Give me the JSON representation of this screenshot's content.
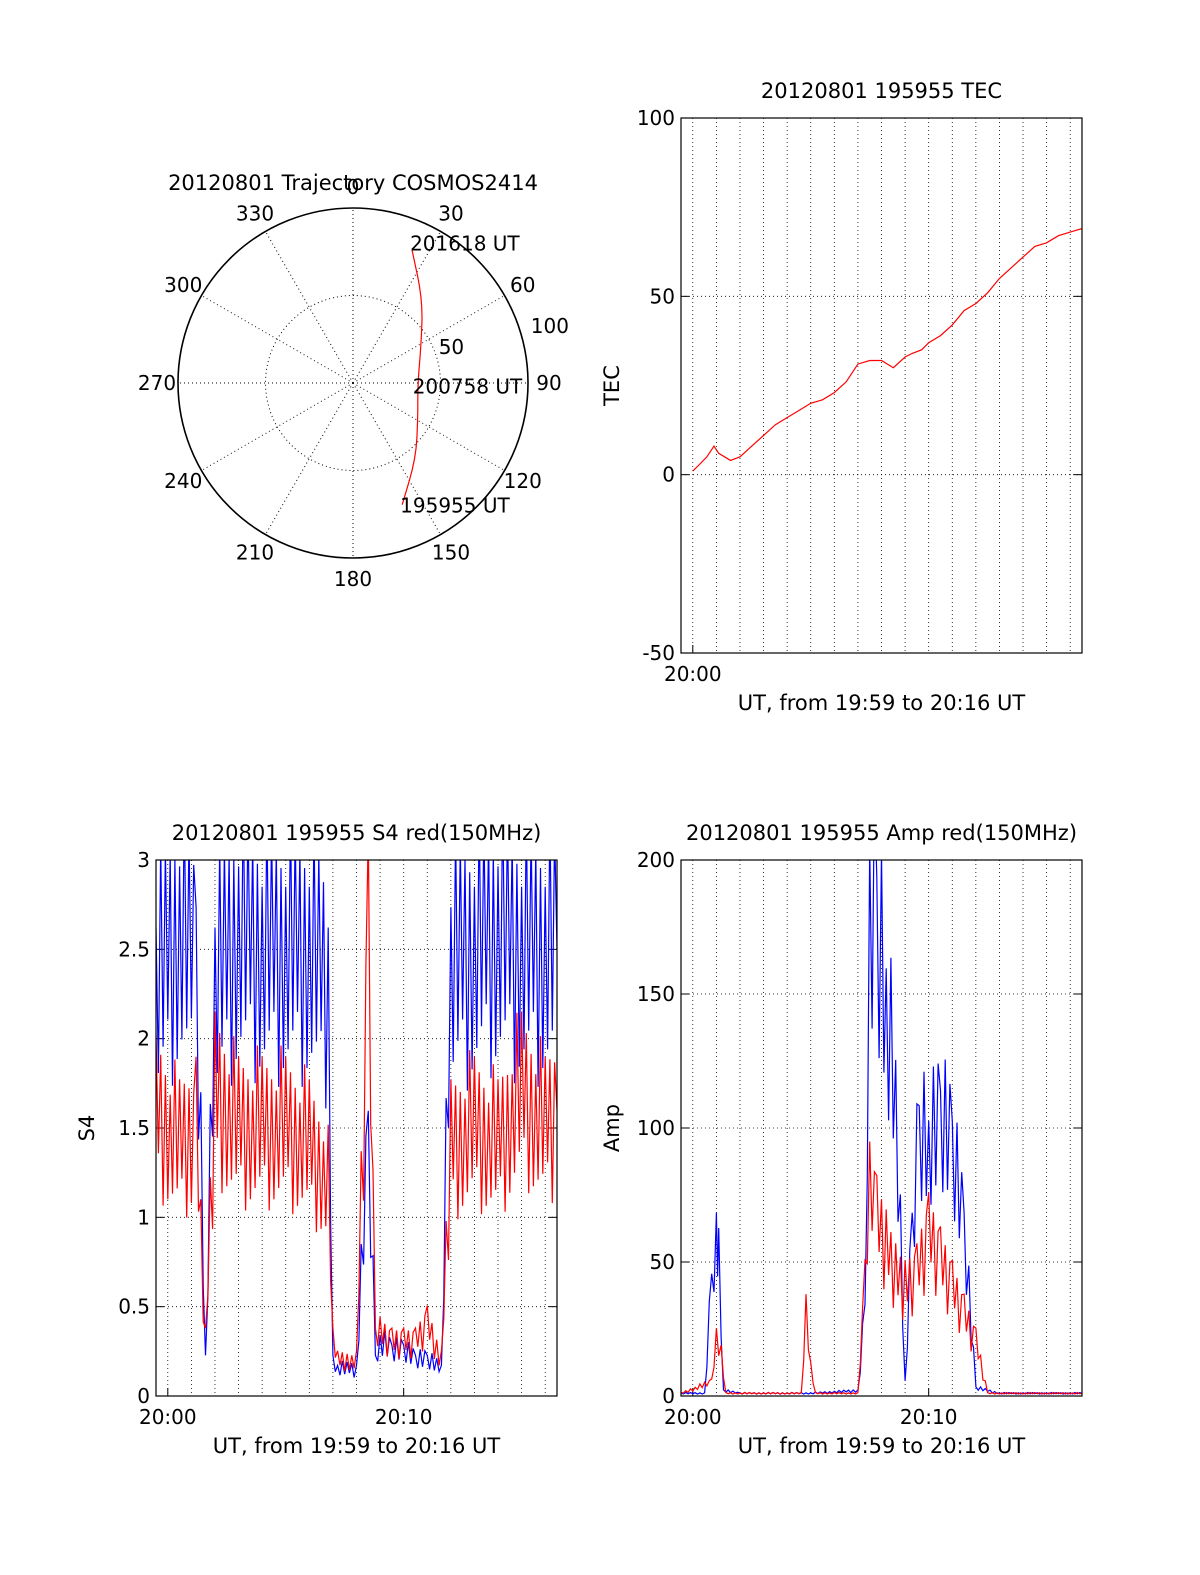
{
  "colors": {
    "red": "#ff0000",
    "blue": "#0000ff",
    "axis": "#000000"
  },
  "chart_data": [
    {
      "id": "trajectory",
      "type": "scatter",
      "projection": "polar",
      "title": "20120801 Trajectory COSMOS2414",
      "azimuth_labels": [
        "0",
        "30",
        "60",
        "90",
        "120",
        "150",
        "180",
        "210",
        "240",
        "270",
        "300",
        "330"
      ],
      "radial_labels": [
        "50",
        "100"
      ],
      "radial_max": 100,
      "grid": true,
      "series": [
        {
          "color": "red",
          "points": [
            {
              "az": 158,
              "zen": 75
            },
            {
              "az": 140,
              "zen": 56
            },
            {
              "az": 118,
              "zen": 42
            },
            {
              "az": 92,
              "zen": 37
            },
            {
              "az": 62,
              "zen": 44
            },
            {
              "az": 40,
              "zen": 62
            },
            {
              "az": 24,
              "zen": 83
            }
          ]
        }
      ],
      "annotations": [
        {
          "text": "195955 UT",
          "az": 158,
          "zen": 75
        },
        {
          "text": "200758 UT",
          "az": 92,
          "zen": 37
        },
        {
          "text": "201618 UT",
          "az": 24,
          "zen": 83
        }
      ]
    },
    {
      "id": "tec",
      "type": "line",
      "title": "20120801 195955 TEC",
      "xlabel": "UT, from 19:59 to 20:16 UT",
      "ylabel": "TEC",
      "xlim": [
        -0.5,
        16.5
      ],
      "ylim": [
        -50,
        100
      ],
      "yticks": [
        -50,
        0,
        50,
        100
      ],
      "xtick_labels": [
        {
          "x": 0,
          "label": "20:00"
        }
      ],
      "grid": true,
      "series": [
        {
          "color": "red",
          "x": [
            0.0,
            0.3,
            0.6,
            0.9,
            1.1,
            1.6,
            2.0,
            2.5,
            3.0,
            3.5,
            4.0,
            4.5,
            5.0,
            5.5,
            6.0,
            6.5,
            7.0,
            7.5,
            8.0,
            8.5,
            9.0,
            9.3,
            9.7,
            10.0,
            10.5,
            11.0,
            11.5,
            12.0,
            12.5,
            13.0,
            13.5,
            14.0,
            14.5,
            15.0,
            15.5,
            16.0,
            16.5
          ],
          "y": [
            1,
            3,
            5,
            8,
            6,
            4,
            5,
            8,
            11,
            14,
            16,
            18,
            20,
            21,
            23,
            26,
            31,
            32,
            32,
            30,
            33,
            34,
            35,
            37,
            39,
            42,
            46,
            48,
            51,
            55,
            58,
            61,
            64,
            65,
            67,
            68,
            69
          ]
        }
      ]
    },
    {
      "id": "s4",
      "type": "line",
      "title": "20120801 195955 S4 red(150MHz)",
      "xlabel": "UT, from 19:59 to 20:16 UT",
      "ylabel": "S4",
      "xlim": [
        -0.5,
        16.5
      ],
      "ylim": [
        0,
        3
      ],
      "yticks": [
        0,
        0.5,
        1,
        1.5,
        2,
        2.5,
        3
      ],
      "xtick_labels": [
        {
          "x": 0,
          "label": "20:00"
        },
        {
          "x": 10,
          "label": "20:10"
        }
      ],
      "grid": true,
      "series": [
        {
          "color": "blue",
          "x": [
            -0.5,
            0.5,
            1.2,
            1.6,
            2.0,
            3.0,
            4.0,
            5.0,
            6.0,
            6.8,
            7.0,
            7.2,
            8.0,
            8.5,
            8.8,
            9.0,
            9.5,
            10.0,
            10.5,
            11.0,
            11.6,
            12.0,
            13.0,
            14.0,
            15.0,
            16.0,
            16.5
          ],
          "y": [
            2.3,
            2.6,
            2.4,
            0.2,
            2.3,
            2.6,
            2.5,
            2.5,
            2.5,
            2.3,
            0.2,
            0.15,
            0.15,
            1.4,
            0.2,
            0.3,
            0.25,
            0.25,
            0.2,
            0.2,
            0.15,
            2.4,
            2.5,
            2.6,
            2.5,
            2.5,
            2.5
          ]
        },
        {
          "color": "red",
          "x": [
            -0.5,
            0.5,
            1.2,
            1.6,
            2.0,
            3.0,
            4.0,
            5.0,
            6.0,
            6.8,
            7.0,
            7.2,
            8.0,
            8.5,
            8.8,
            9.0,
            9.5,
            10.0,
            10.5,
            11.0,
            11.6,
            12.0,
            13.0,
            14.0,
            15.0,
            16.0,
            16.5
          ],
          "y": [
            1.6,
            1.4,
            1.5,
            0.3,
            1.7,
            1.5,
            1.5,
            1.5,
            1.4,
            1.2,
            0.3,
            0.2,
            0.2,
            2.5,
            0.3,
            0.35,
            0.3,
            0.3,
            0.3,
            0.4,
            0.2,
            1.4,
            1.5,
            1.4,
            1.7,
            1.5,
            1.6
          ]
        }
      ]
    },
    {
      "id": "amp",
      "type": "line",
      "title": "20120801 195955 Amp red(150MHz)",
      "xlabel": "UT, from 19:59 to 20:16 UT",
      "ylabel": "Amp",
      "xlim": [
        -0.5,
        16.5
      ],
      "ylim": [
        0,
        200
      ],
      "yticks": [
        0,
        50,
        100,
        150,
        200
      ],
      "xtick_labels": [
        {
          "x": 0,
          "label": "20:00"
        },
        {
          "x": 10,
          "label": "20:10"
        }
      ],
      "grid": true,
      "series": [
        {
          "color": "blue",
          "x": [
            -0.5,
            0.5,
            0.8,
            1.0,
            1.1,
            1.3,
            2.0,
            5.0,
            7.0,
            7.3,
            7.5,
            7.8,
            8.2,
            8.6,
            9.0,
            9.3,
            9.6,
            10.0,
            10.5,
            11.0,
            11.5,
            12.0,
            13.0,
            14.0,
            15.0,
            16.0,
            16.5
          ],
          "y": [
            1,
            1,
            40,
            60,
            55,
            2,
            1,
            1,
            2,
            30,
            180,
            170,
            140,
            110,
            5,
            60,
            95,
            90,
            100,
            90,
            60,
            3,
            1,
            1,
            1,
            1,
            1
          ]
        },
        {
          "color": "red",
          "x": [
            -0.5,
            0.8,
            1.0,
            1.2,
            1.4,
            4.6,
            4.8,
            5.0,
            5.2,
            7.0,
            7.3,
            7.5,
            7.8,
            8.2,
            8.6,
            9.0,
            9.5,
            10.0,
            10.5,
            11.0,
            11.5,
            12.0,
            12.5,
            16.5
          ],
          "y": [
            1,
            5,
            20,
            15,
            1,
            1,
            30,
            10,
            1,
            1,
            40,
            75,
            65,
            55,
            45,
            40,
            45,
            60,
            50,
            40,
            30,
            20,
            1,
            1
          ]
        }
      ]
    }
  ]
}
